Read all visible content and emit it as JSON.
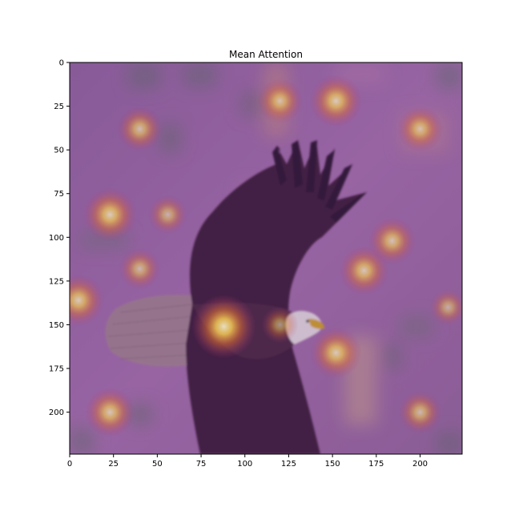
{
  "chart_data": {
    "type": "heatmap",
    "title": "Mean Attention",
    "xlabel": "",
    "ylabel": "",
    "xlim": [
      0,
      224
    ],
    "ylim": [
      224,
      0
    ],
    "xticks": [
      0,
      25,
      50,
      75,
      100,
      125,
      150,
      175,
      200
    ],
    "yticks": [
      0,
      25,
      50,
      75,
      100,
      125,
      150,
      175,
      200
    ],
    "colormap": "inferno",
    "overlay_alpha": 0.6,
    "background_image": "bald eagle in flight, wings spread, facing right",
    "grid": false,
    "hotspots": [
      {
        "x": 88,
        "y": 151,
        "value": 1.0
      },
      {
        "x": 23,
        "y": 87,
        "value": 0.75
      },
      {
        "x": 152,
        "y": 22,
        "value": 0.72
      },
      {
        "x": 5,
        "y": 136,
        "value": 0.7
      },
      {
        "x": 152,
        "y": 166,
        "value": 0.7
      },
      {
        "x": 23,
        "y": 200,
        "value": 0.65
      },
      {
        "x": 168,
        "y": 119,
        "value": 0.65
      },
      {
        "x": 184,
        "y": 102,
        "value": 0.6
      },
      {
        "x": 120,
        "y": 22,
        "value": 0.55
      },
      {
        "x": 40,
        "y": 38,
        "value": 0.55
      },
      {
        "x": 200,
        "y": 38,
        "value": 0.55
      },
      {
        "x": 200,
        "y": 200,
        "value": 0.5
      },
      {
        "x": 40,
        "y": 118,
        "value": 0.45
      },
      {
        "x": 56,
        "y": 87,
        "value": 0.4
      },
      {
        "x": 120,
        "y": 150,
        "value": 0.35
      },
      {
        "x": 216,
        "y": 140,
        "value": 0.35
      }
    ]
  }
}
